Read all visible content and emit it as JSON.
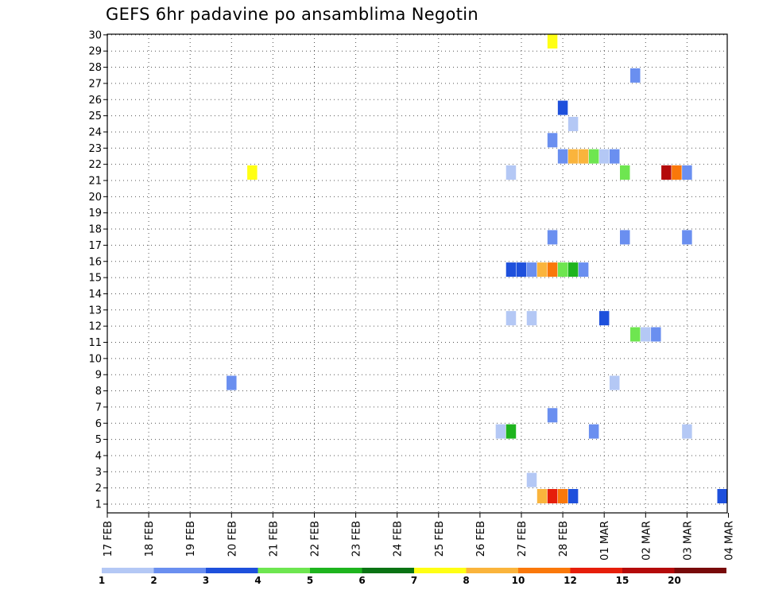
{
  "title": "GEFS 6hr padavine po ansamblima Negotin",
  "chart_data": {
    "type": "heatmap",
    "title": "GEFS 6hr padavine po ansamblima Negotin",
    "y_ticks": [
      "1",
      "2",
      "3",
      "4",
      "5",
      "6",
      "7",
      "8",
      "9",
      "10",
      "11",
      "12",
      "13",
      "14",
      "15",
      "16",
      "17",
      "18",
      "19",
      "20",
      "21",
      "22",
      "23",
      "24",
      "25",
      "26",
      "27",
      "28",
      "29",
      "30"
    ],
    "x_ticks": [
      "17 FEB",
      "18 FEB",
      "19 FEB",
      "20 FEB",
      "21 FEB",
      "22 FEB",
      "23 FEB",
      "24 FEB",
      "25 FEB",
      "26 FEB",
      "27 FEB",
      "28 FEB",
      "01 MAR",
      "02 MAR",
      "03 MAR",
      "04 MAR"
    ],
    "ylim": [
      0.5,
      30.5
    ],
    "grid": true,
    "colorbar": {
      "labels": [
        "1",
        "2",
        "3",
        "4",
        "5",
        "6",
        "7",
        "8",
        "10",
        "12",
        "15",
        "20"
      ],
      "colors": [
        "#b4c8f5",
        "#6a8ff0",
        "#1e50dc",
        "#6ee650",
        "#1eb41e",
        "#0a7314",
        "#ffff14",
        "#fab43c",
        "#fa780a",
        "#e61e0a",
        "#b40a0a",
        "#780a0a"
      ]
    },
    "cells": [
      {
        "day": 27.75,
        "member": 30.5,
        "color": "#ffff14"
      },
      {
        "day": 29.75,
        "member": 27.5,
        "color": "#6a8ff0"
      },
      {
        "day": 28.0,
        "member": 25.5,
        "color": "#1e50dc"
      },
      {
        "day": 28.25,
        "member": 24.5,
        "color": "#b4c8f5"
      },
      {
        "day": 27.75,
        "member": 23.5,
        "color": "#6a8ff0"
      },
      {
        "day": 28.0,
        "member": 22.5,
        "color": "#6a8ff0"
      },
      {
        "day": 28.25,
        "member": 22.5,
        "color": "#fab43c"
      },
      {
        "day": 28.5,
        "member": 22.5,
        "color": "#fab43c"
      },
      {
        "day": 28.75,
        "member": 22.5,
        "color": "#6ee650"
      },
      {
        "day": 29.0,
        "member": 22.5,
        "color": "#b4c8f5"
      },
      {
        "day": 29.25,
        "member": 22.5,
        "color": "#6a8ff0"
      },
      {
        "day": 20.5,
        "member": 21.5,
        "color": "#ffff14"
      },
      {
        "day": 26.75,
        "member": 21.5,
        "color": "#b4c8f5"
      },
      {
        "day": 29.5,
        "member": 21.5,
        "color": "#6ee650"
      },
      {
        "day": 30.5,
        "member": 21.5,
        "color": "#b40a0a"
      },
      {
        "day": 30.75,
        "member": 21.5,
        "color": "#fa780a"
      },
      {
        "day": 31.0,
        "member": 21.5,
        "color": "#6a8ff0"
      },
      {
        "day": 27.75,
        "member": 17.5,
        "color": "#6a8ff0"
      },
      {
        "day": 29.5,
        "member": 17.5,
        "color": "#6a8ff0"
      },
      {
        "day": 31.0,
        "member": 17.5,
        "color": "#6a8ff0"
      },
      {
        "day": 26.75,
        "member": 15.5,
        "color": "#1e50dc"
      },
      {
        "day": 27.0,
        "member": 15.5,
        "color": "#1e50dc"
      },
      {
        "day": 27.25,
        "member": 15.5,
        "color": "#6a8ff0"
      },
      {
        "day": 27.5,
        "member": 15.5,
        "color": "#fab43c"
      },
      {
        "day": 27.75,
        "member": 15.5,
        "color": "#fa780a"
      },
      {
        "day": 28.0,
        "member": 15.5,
        "color": "#6ee650"
      },
      {
        "day": 28.25,
        "member": 15.5,
        "color": "#1eb41e"
      },
      {
        "day": 28.5,
        "member": 15.5,
        "color": "#6a8ff0"
      },
      {
        "day": 26.75,
        "member": 12.5,
        "color": "#b4c8f5"
      },
      {
        "day": 27.25,
        "member": 12.5,
        "color": "#b4c8f5"
      },
      {
        "day": 29.0,
        "member": 12.5,
        "color": "#1e50dc"
      },
      {
        "day": 29.75,
        "member": 11.5,
        "color": "#6ee650"
      },
      {
        "day": 30.0,
        "member": 11.5,
        "color": "#b4c8f5"
      },
      {
        "day": 30.25,
        "member": 11.5,
        "color": "#6a8ff0"
      },
      {
        "day": 20.0,
        "member": 8.5,
        "color": "#6a8ff0"
      },
      {
        "day": 29.25,
        "member": 8.5,
        "color": "#b4c8f5"
      },
      {
        "day": 27.75,
        "member": 6.5,
        "color": "#6a8ff0"
      },
      {
        "day": 26.5,
        "member": 5.5,
        "color": "#b4c8f5"
      },
      {
        "day": 26.75,
        "member": 5.5,
        "color": "#1eb41e"
      },
      {
        "day": 28.75,
        "member": 5.5,
        "color": "#6a8ff0"
      },
      {
        "day": 31.0,
        "member": 5.5,
        "color": "#b4c8f5"
      },
      {
        "day": 27.25,
        "member": 2.5,
        "color": "#b4c8f5"
      },
      {
        "day": 27.5,
        "member": 1.5,
        "color": "#fab43c"
      },
      {
        "day": 27.75,
        "member": 1.5,
        "color": "#e61e0a"
      },
      {
        "day": 28.0,
        "member": 1.5,
        "color": "#fa780a"
      },
      {
        "day": 28.25,
        "member": 1.5,
        "color": "#1e50dc"
      },
      {
        "day": 32.0,
        "member": 1.5,
        "color": "#1e50dc"
      }
    ]
  }
}
